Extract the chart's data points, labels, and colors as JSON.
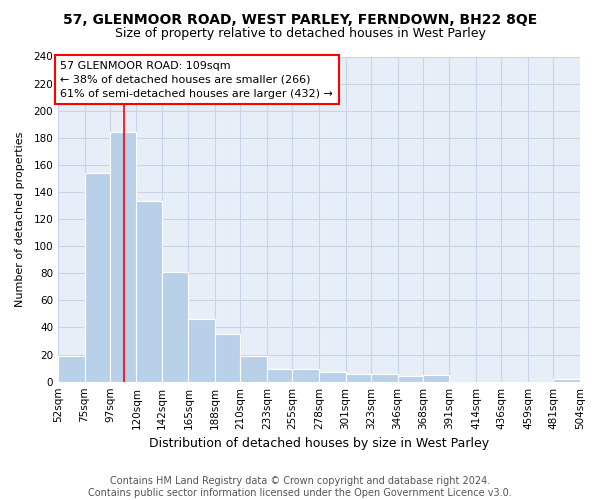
{
  "title": "57, GLENMOOR ROAD, WEST PARLEY, FERNDOWN, BH22 8QE",
  "subtitle": "Size of property relative to detached houses in West Parley",
  "xlabel": "Distribution of detached houses by size in West Parley",
  "ylabel": "Number of detached properties",
  "bar_color": "#b8d0e8",
  "vline_x": 109,
  "vline_color": "red",
  "annotation_title": "57 GLENMOOR ROAD: 109sqm",
  "annotation_line1": "← 38% of detached houses are smaller (266)",
  "annotation_line2": "61% of semi-detached houses are larger (432) →",
  "annotation_box_color": "white",
  "annotation_box_edgecolor": "red",
  "bin_edges": [
    52,
    75,
    97,
    120,
    142,
    165,
    188,
    210,
    233,
    255,
    278,
    301,
    323,
    346,
    368,
    391,
    414,
    436,
    459,
    481,
    504
  ],
  "bin_heights": [
    19,
    154,
    184,
    133,
    81,
    46,
    35,
    19,
    9,
    9,
    7,
    6,
    6,
    4,
    5,
    0,
    0,
    0,
    0,
    2
  ],
  "tick_labels": [
    "52sqm",
    "75sqm",
    "97sqm",
    "120sqm",
    "142sqm",
    "165sqm",
    "188sqm",
    "210sqm",
    "233sqm",
    "255sqm",
    "278sqm",
    "301sqm",
    "323sqm",
    "346sqm",
    "368sqm",
    "391sqm",
    "414sqm",
    "436sqm",
    "459sqm",
    "481sqm",
    "504sqm"
  ],
  "ylim": [
    0,
    240
  ],
  "yticks": [
    0,
    20,
    40,
    60,
    80,
    100,
    120,
    140,
    160,
    180,
    200,
    220,
    240
  ],
  "footer_line1": "Contains HM Land Registry data © Crown copyright and database right 2024.",
  "footer_line2": "Contains public sector information licensed under the Open Government Licence v3.0.",
  "bg_color": "#ffffff",
  "plot_bg_color": "#e8eef7",
  "grid_color": "#c8d4e8",
  "title_fontsize": 10,
  "subtitle_fontsize": 9,
  "xlabel_fontsize": 9,
  "ylabel_fontsize": 8,
  "tick_fontsize": 7.5,
  "footer_fontsize": 7
}
